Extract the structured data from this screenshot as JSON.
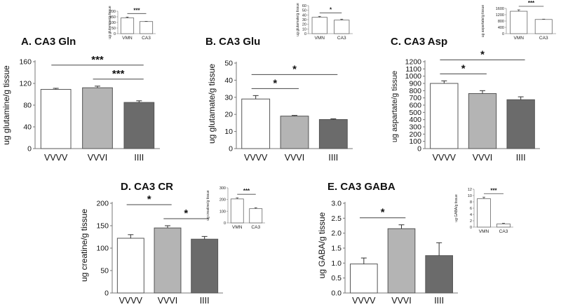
{
  "figure": {
    "background": "#ffffff"
  },
  "chart_data": [
    {
      "type": "bar",
      "panel": "A.",
      "title": "CA3 Gln",
      "ylabel": "ug glutamine/g tissue",
      "xlabel": "",
      "categories": [
        "VVVV",
        "VVVI",
        "IIII"
      ],
      "values": [
        109,
        112,
        85
      ],
      "errors": [
        2,
        3,
        3
      ],
      "colors": [
        "#ffffff",
        "#b4b4b4",
        "#6b6b6b"
      ],
      "ylim": [
        0,
        160
      ],
      "yticks": [
        "0",
        "40",
        "80",
        "120",
        "160"
      ],
      "significance": [
        {
          "from": 0,
          "to": 2,
          "label": "***"
        },
        {
          "from": 1,
          "to": 2,
          "label": "***"
        }
      ],
      "inset": {
        "ylabel": "ug glutamine/g tissue",
        "categories": [
          "VMN",
          "CA3"
        ],
        "values": [
          140,
          108
        ],
        "errors": [
          8,
          2
        ],
        "ylim": [
          0,
          200
        ],
        "yticks": [
          "0",
          "50",
          "100",
          "150",
          "200"
        ],
        "significance": "***"
      }
    },
    {
      "type": "bar",
      "panel": "B.",
      "title": "CA3 Glu",
      "ylabel": "ug glutamate/g tissue",
      "xlabel": "",
      "categories": [
        "VVVV",
        "VVVI",
        "IIII"
      ],
      "values": [
        29,
        19,
        17
      ],
      "errors": [
        2,
        0.4,
        0.4
      ],
      "colors": [
        "#ffffff",
        "#b4b4b4",
        "#6b6b6b"
      ],
      "ylim": [
        0,
        50
      ],
      "yticks": [
        "0",
        "10",
        "20",
        "30",
        "40",
        "50"
      ],
      "significance": [
        {
          "from": 0,
          "to": 2,
          "label": "*"
        },
        {
          "from": 0,
          "to": 1,
          "label": "*"
        }
      ],
      "inset": {
        "ylabel": "ug glutamate/g tissue",
        "categories": [
          "VMN",
          "CA3"
        ],
        "values": [
          35,
          29
        ],
        "errors": [
          2,
          2
        ],
        "ylim": [
          0,
          60
        ],
        "yticks": [
          "0",
          "10",
          "20",
          "30",
          "40",
          "50",
          "60"
        ],
        "significance": "*"
      }
    },
    {
      "type": "bar",
      "panel": "C.",
      "title": "CA3 Asp",
      "ylabel": "ug aspartate/g tissue",
      "xlabel": "",
      "categories": [
        "VVVV",
        "VVVI",
        "IIII"
      ],
      "values": [
        900,
        760,
        675
      ],
      "errors": [
        35,
        40,
        40
      ],
      "colors": [
        "#ffffff",
        "#b4b4b4",
        "#6b6b6b"
      ],
      "ylim": [
        0,
        1200
      ],
      "yticks": [
        "0",
        "100",
        "200",
        "300",
        "400",
        "500",
        "600",
        "700",
        "800",
        "900",
        "1000",
        "1100",
        "1200"
      ],
      "significance": [
        {
          "from": 0,
          "to": 2,
          "label": "*"
        },
        {
          "from": 0,
          "to": 1,
          "label": "*"
        }
      ],
      "inset": {
        "ylabel": "ug aspartate/g tissue",
        "categories": [
          "VMN",
          "CA3"
        ],
        "values": [
          1420,
          900
        ],
        "errors": [
          90,
          20
        ],
        "ylim": [
          0,
          1600
        ],
        "yticks": [
          "0",
          "400",
          "800",
          "1200",
          "1600"
        ],
        "significance": "***"
      }
    },
    {
      "type": "bar",
      "panel": "D.",
      "title": "CA3 CR",
      "ylabel": "ug creatine/g tissue",
      "xlabel": "",
      "categories": [
        "VVVV",
        "VVVI",
        "IIII"
      ],
      "values": [
        122,
        145,
        120
      ],
      "errors": [
        8,
        5,
        6
      ],
      "colors": [
        "#ffffff",
        "#b4b4b4",
        "#6b6b6b"
      ],
      "ylim": [
        0,
        200
      ],
      "yticks": [
        "0",
        "50",
        "100",
        "150",
        "200"
      ],
      "significance": [
        {
          "from": 0,
          "to": 1,
          "label": "*"
        },
        {
          "from": 1,
          "to": 2,
          "label": "*"
        }
      ],
      "inset": {
        "ylabel": "ug creatine/g tissue",
        "categories": [
          "VMN",
          "CA3"
        ],
        "values": [
          205,
          122
        ],
        "errors": [
          10,
          8
        ],
        "ylim": [
          0,
          300
        ],
        "yticks": [
          "0",
          "100",
          "200",
          "300"
        ],
        "significance": "***"
      }
    },
    {
      "type": "bar",
      "panel": "E.",
      "title": "CA3 GABA",
      "ylabel": "ug GABA/g tissue",
      "xlabel": "",
      "categories": [
        "VVVV",
        "VVVI",
        "IIII"
      ],
      "values": [
        0.97,
        2.15,
        1.25
      ],
      "errors": [
        0.2,
        0.13,
        0.43
      ],
      "colors": [
        "#ffffff",
        "#b4b4b4",
        "#6b6b6b"
      ],
      "ylim": [
        0,
        3.0
      ],
      "yticks": [
        "0.0",
        "0.5",
        "1.0",
        "1.5",
        "2.0",
        "2.5",
        "3.0"
      ],
      "significance": [
        {
          "from": 0,
          "to": 1,
          "label": "*"
        }
      ],
      "inset": {
        "ylabel": "ug GABA/g tissue",
        "categories": [
          "VMN",
          "CA3"
        ],
        "values": [
          9,
          1
        ],
        "errors": [
          0.5,
          0.2
        ],
        "ylim": [
          0,
          12
        ],
        "yticks": [
          "0",
          "2",
          "4",
          "6",
          "8",
          "10",
          "12"
        ],
        "significance": "***"
      }
    }
  ]
}
